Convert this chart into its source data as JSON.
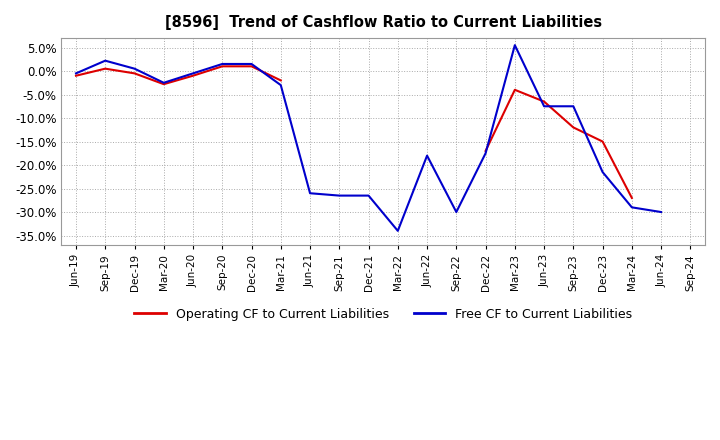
{
  "title": "[8596]  Trend of Cashflow Ratio to Current Liabilities",
  "ylim": [
    -0.37,
    0.07
  ],
  "yticks": [
    0.05,
    0.0,
    -0.05,
    -0.1,
    -0.15,
    -0.2,
    -0.25,
    -0.3,
    -0.35
  ],
  "x_labels": [
    "Jun-19",
    "Sep-19",
    "Dec-19",
    "Mar-20",
    "Jun-20",
    "Sep-20",
    "Dec-20",
    "Mar-21",
    "Jun-21",
    "Sep-21",
    "Dec-21",
    "Mar-22",
    "Jun-22",
    "Sep-22",
    "Dec-22",
    "Mar-23",
    "Jun-23",
    "Sep-23",
    "Dec-23",
    "Mar-24",
    "Jun-24",
    "Sep-24"
  ],
  "operating_cf": {
    "0": -0.01,
    "1": 0.005,
    "2": -0.005,
    "3": -0.028,
    "4": -0.01,
    "5": 0.01,
    "6": 0.01,
    "7": -0.02,
    "14": -0.17,
    "15": -0.04,
    "16": -0.065,
    "17": -0.12,
    "18": -0.15,
    "19": -0.27
  },
  "free_cf": {
    "0": -0.005,
    "1": 0.022,
    "2": 0.005,
    "3": -0.025,
    "4": -0.005,
    "5": 0.015,
    "6": 0.015,
    "7": -0.03,
    "8": -0.26,
    "9": -0.265,
    "10": -0.265,
    "11": -0.34,
    "12": -0.18,
    "13": -0.3,
    "14": -0.175,
    "15": 0.055,
    "16": -0.075,
    "17": -0.075,
    "18": -0.215,
    "19": -0.29,
    "20": -0.3
  },
  "operating_color": "#dd0000",
  "free_color": "#0000cc",
  "bg_color": "#ffffff",
  "grid_color": "#aaaaaa",
  "legend_labels": [
    "Operating CF to Current Liabilities",
    "Free CF to Current Liabilities"
  ]
}
